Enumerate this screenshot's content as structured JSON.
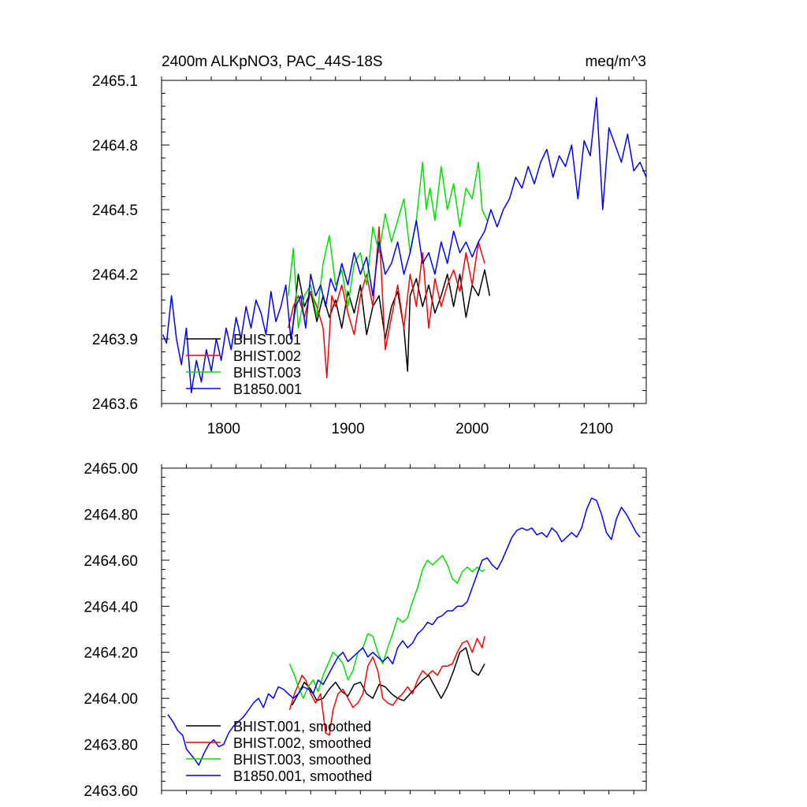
{
  "chart_data": [
    {
      "type": "line",
      "title": "2400m ALKpNO3, PAC_44S-18S",
      "units": "meq/m^3",
      "xlim": [
        1750,
        2140
      ],
      "ylim": [
        2463.6,
        2465.1
      ],
      "x_ticks": [
        1800,
        1900,
        2000,
        2100
      ],
      "x_tick_labels": [
        "1800",
        "1900",
        "2000",
        "2100"
      ],
      "y_ticks": [
        2463.6,
        2463.9,
        2464.2,
        2464.5,
        2464.8,
        2465.1
      ],
      "y_tick_labels": [
        "2463.6",
        "2463.9",
        "2464.2",
        "2464.5",
        "2464.8",
        "2465.1"
      ],
      "legend": "bottom-left",
      "series": [
        {
          "name": "BHIST.001",
          "color": "#000000",
          "x": [
            1855,
            1860,
            1865,
            1870,
            1875,
            1880,
            1885,
            1890,
            1895,
            1900,
            1905,
            1910,
            1915,
            1920,
            1925,
            1930,
            1935,
            1940,
            1945,
            1948,
            1950,
            1955,
            1960,
            1965,
            1970,
            1975,
            1980,
            1985,
            1990,
            1995,
            2000,
            2005,
            2010,
            2014
          ],
          "y": [
            2463.92,
            2464.2,
            2464.05,
            2464.12,
            2463.98,
            2464.1,
            2464.0,
            2464.08,
            2463.95,
            2464.12,
            2464.02,
            2464.15,
            2463.92,
            2464.05,
            2464.1,
            2463.9,
            2464.05,
            2464.12,
            2463.95,
            2463.75,
            2464.1,
            2464.18,
            2464.05,
            2464.15,
            2464.02,
            2464.1,
            2464.2,
            2464.05,
            2464.2,
            2464.0,
            2464.15,
            2464.1,
            2464.22,
            2464.1
          ]
        },
        {
          "name": "BHIST.002",
          "color": "#ff0000",
          "x": [
            1852,
            1856,
            1860,
            1865,
            1870,
            1875,
            1880,
            1883,
            1887,
            1890,
            1895,
            1900,
            1905,
            1910,
            1915,
            1920,
            1925,
            1930,
            1935,
            1940,
            1945,
            1950,
            1955,
            1960,
            1965,
            1970,
            1975,
            1980,
            1985,
            1990,
            1995,
            2000,
            2005,
            2010
          ],
          "y": [
            2463.95,
            2464.05,
            2464.1,
            2464.0,
            2464.12,
            2464.05,
            2463.95,
            2463.72,
            2464.1,
            2464.05,
            2464.15,
            2464.02,
            2463.92,
            2464.1,
            2464.2,
            2464.05,
            2464.42,
            2463.85,
            2464.0,
            2464.15,
            2463.95,
            2464.2,
            2464.05,
            2464.3,
            2463.95,
            2464.18,
            2464.05,
            2464.15,
            2464.22,
            2464.12,
            2464.3,
            2464.15,
            2464.35,
            2464.25
          ]
        },
        {
          "name": "BHIST.003",
          "color": "#00e000",
          "x": [
            1852,
            1856,
            1860,
            1865,
            1870,
            1875,
            1880,
            1885,
            1890,
            1895,
            1900,
            1905,
            1910,
            1915,
            1920,
            1925,
            1930,
            1935,
            1940,
            1945,
            1950,
            1955,
            1960,
            1963,
            1966,
            1970,
            1975,
            1980,
            1985,
            1990,
            1995,
            2000,
            2005,
            2008,
            2012
          ],
          "y": [
            2464.1,
            2464.32,
            2463.95,
            2464.1,
            2464.15,
            2464.0,
            2464.25,
            2464.38,
            2464.15,
            2464.22,
            2464.05,
            2464.25,
            2464.3,
            2464.15,
            2464.42,
            2464.3,
            2464.48,
            2464.35,
            2464.45,
            2464.55,
            2464.3,
            2464.45,
            2464.72,
            2464.5,
            2464.6,
            2464.45,
            2464.7,
            2464.5,
            2464.62,
            2464.42,
            2464.6,
            2464.55,
            2464.72,
            2464.5,
            2464.45
          ]
        },
        {
          "name": "B1850.001",
          "color": "#0000ff",
          "x": [
            1751,
            1754,
            1758,
            1762,
            1766,
            1770,
            1774,
            1778,
            1782,
            1786,
            1790,
            1794,
            1798,
            1802,
            1806,
            1810,
            1814,
            1818,
            1822,
            1826,
            1830,
            1834,
            1838,
            1842,
            1846,
            1850,
            1854,
            1858,
            1862,
            1866,
            1870,
            1874,
            1878,
            1882,
            1886,
            1890,
            1895,
            1900,
            1905,
            1910,
            1915,
            1920,
            1925,
            1930,
            1935,
            1940,
            1945,
            1950,
            1955,
            1960,
            1965,
            1970,
            1975,
            1980,
            1985,
            1990,
            1995,
            2000,
            2005,
            2010,
            2015,
            2020,
            2025,
            2030,
            2035,
            2040,
            2045,
            2050,
            2055,
            2060,
            2065,
            2070,
            2075,
            2080,
            2085,
            2090,
            2095,
            2100,
            2105,
            2110,
            2115,
            2120,
            2125,
            2130,
            2135,
            2140
          ],
          "y": [
            2463.92,
            2463.88,
            2464.1,
            2463.9,
            2463.78,
            2463.95,
            2463.65,
            2463.8,
            2463.7,
            2463.85,
            2463.75,
            2463.9,
            2463.8,
            2463.95,
            2463.85,
            2464.0,
            2463.9,
            2464.05,
            2463.95,
            2464.08,
            2464.02,
            2463.92,
            2464.12,
            2463.98,
            2464.05,
            2464.15,
            2463.9,
            2464.05,
            2464.1,
            2463.95,
            2464.2,
            2464.1,
            2464.15,
            2464.05,
            2464.18,
            2464.12,
            2464.25,
            2464.15,
            2464.3,
            2464.2,
            2464.28,
            2464.1,
            2464.35,
            2464.2,
            2464.25,
            2464.35,
            2464.2,
            2464.3,
            2464.45,
            2464.25,
            2464.3,
            2464.2,
            2464.35,
            2464.25,
            2464.4,
            2464.3,
            2464.35,
            2464.28,
            2464.35,
            2464.4,
            2464.5,
            2464.42,
            2464.5,
            2464.55,
            2464.65,
            2464.6,
            2464.7,
            2464.62,
            2464.72,
            2464.78,
            2464.65,
            2464.75,
            2464.7,
            2464.8,
            2464.55,
            2464.82,
            2464.75,
            2465.02,
            2464.5,
            2464.88,
            2464.8,
            2464.72,
            2464.85,
            2464.68,
            2464.72,
            2464.65
          ]
        }
      ]
    },
    {
      "type": "line",
      "title": "",
      "xlim": [
        1750,
        2140
      ],
      "ylim": [
        2463.6,
        2465.0
      ],
      "x_ticks": [
        1800,
        1900,
        2000,
        2100
      ],
      "x_tick_labels": [
        "",
        "",
        "",
        ""
      ],
      "y_ticks": [
        2463.6,
        2463.8,
        2464.0,
        2464.2,
        2464.4,
        2464.6,
        2464.8,
        2465.0
      ],
      "y_tick_labels": [
        "2463.60",
        "2463.80",
        "2464.00",
        "2464.20",
        "2464.40",
        "2464.60",
        "2464.80",
        "2465.00"
      ],
      "legend": "bottom-left",
      "series": [
        {
          "name": "BHIST.001, smoothed",
          "color": "#000000",
          "x": [
            1855,
            1860,
            1865,
            1870,
            1875,
            1880,
            1885,
            1890,
            1895,
            1900,
            1905,
            1910,
            1915,
            1920,
            1925,
            1930,
            1935,
            1940,
            1945,
            1950,
            1955,
            1960,
            1965,
            1970,
            1975,
            1980,
            1985,
            1990,
            1995,
            2000,
            2005,
            2010
          ],
          "y": [
            2463.97,
            2464.02,
            2464.07,
            2464.04,
            2463.99,
            2464.0,
            2464.04,
            2464.07,
            2464.03,
            2464.01,
            2464.06,
            2464.07,
            2464.02,
            2464.0,
            2464.06,
            2464.05,
            2464.02,
            2464.0,
            2463.99,
            2464.02,
            2464.05,
            2464.08,
            2464.1,
            2464.05,
            2464.0,
            2464.05,
            2464.12,
            2464.2,
            2464.22,
            2464.12,
            2464.1,
            2464.15
          ]
        },
        {
          "name": "BHIST.002, smoothed",
          "color": "#ff0000",
          "x": [
            1853,
            1857,
            1860,
            1863,
            1866,
            1870,
            1874,
            1878,
            1882,
            1885,
            1888,
            1892,
            1896,
            1900,
            1904,
            1908,
            1912,
            1916,
            1920,
            1924,
            1928,
            1932,
            1936,
            1940,
            1944,
            1948,
            1952,
            1956,
            1960,
            1964,
            1968,
            1972,
            1976,
            1980,
            1984,
            1988,
            1992,
            1996,
            2000,
            2004,
            2008,
            2010
          ],
          "y": [
            2463.95,
            2464.02,
            2464.06,
            2464.1,
            2464.08,
            2464.02,
            2463.98,
            2464.02,
            2463.85,
            2463.84,
            2463.95,
            2464.02,
            2464.04,
            2464.0,
            2463.96,
            2463.98,
            2464.02,
            2464.14,
            2464.18,
            2464.12,
            2464.0,
            2463.98,
            2463.97,
            2464.0,
            2464.02,
            2464.05,
            2464.02,
            2464.08,
            2464.12,
            2464.1,
            2464.12,
            2464.1,
            2464.14,
            2464.14,
            2464.15,
            2464.2,
            2464.24,
            2464.25,
            2464.2,
            2464.26,
            2464.22,
            2464.27
          ]
        },
        {
          "name": "BHIST.003, smoothed",
          "color": "#00e000",
          "x": [
            1853,
            1857,
            1860,
            1864,
            1868,
            1872,
            1876,
            1880,
            1884,
            1888,
            1892,
            1896,
            1900,
            1904,
            1908,
            1912,
            1916,
            1920,
            1924,
            1928,
            1932,
            1936,
            1940,
            1944,
            1948,
            1952,
            1956,
            1960,
            1964,
            1968,
            1972,
            1976,
            1980,
            1984,
            1988,
            1992,
            1996,
            2000,
            2004,
            2008,
            2010
          ],
          "y": [
            2464.15,
            2464.1,
            2464.05,
            2464.0,
            2464.05,
            2464.08,
            2464.03,
            2464.1,
            2464.15,
            2464.2,
            2464.18,
            2464.15,
            2464.08,
            2464.12,
            2464.2,
            2464.22,
            2464.28,
            2464.27,
            2464.2,
            2464.15,
            2464.22,
            2464.28,
            2464.35,
            2464.33,
            2464.35,
            2464.42,
            2464.48,
            2464.56,
            2464.6,
            2464.58,
            2464.6,
            2464.62,
            2464.58,
            2464.52,
            2464.5,
            2464.55,
            2464.57,
            2464.55,
            2464.57,
            2464.55,
            2464.56
          ]
        },
        {
          "name": "B1850.001, smoothed",
          "color": "#0000ff",
          "x": [
            1755,
            1759,
            1763,
            1767,
            1770,
            1773,
            1776,
            1780,
            1784,
            1788,
            1792,
            1796,
            1800,
            1804,
            1808,
            1812,
            1816,
            1820,
            1824,
            1828,
            1832,
            1836,
            1840,
            1844,
            1848,
            1852,
            1856,
            1860,
            1864,
            1868,
            1872,
            1876,
            1880,
            1884,
            1888,
            1892,
            1896,
            1900,
            1904,
            1908,
            1912,
            1916,
            1920,
            1924,
            1928,
            1932,
            1936,
            1940,
            1944,
            1948,
            1952,
            1956,
            1960,
            1964,
            1968,
            1972,
            1976,
            1980,
            1984,
            1988,
            1992,
            1996,
            2000,
            2004,
            2008,
            2012,
            2016,
            2020,
            2024,
            2028,
            2032,
            2036,
            2040,
            2044,
            2048,
            2052,
            2056,
            2060,
            2064,
            2068,
            2072,
            2076,
            2080,
            2084,
            2088,
            2092,
            2096,
            2100,
            2104,
            2108,
            2112,
            2116,
            2120,
            2124,
            2128,
            2132,
            2135
          ],
          "y": [
            2463.93,
            2463.9,
            2463.86,
            2463.84,
            2463.78,
            2463.76,
            2463.74,
            2463.71,
            2463.76,
            2463.8,
            2463.82,
            2463.79,
            2463.8,
            2463.85,
            2463.88,
            2463.9,
            2463.92,
            2463.95,
            2463.98,
            2464.0,
            2463.96,
            2464.02,
            2464.0,
            2464.05,
            2464.04,
            2464.02,
            2464.0,
            2464.02,
            2464.05,
            2464.04,
            2464.02,
            2464.08,
            2464.06,
            2464.1,
            2464.14,
            2464.18,
            2464.2,
            2464.16,
            2464.18,
            2464.2,
            2464.22,
            2464.18,
            2464.2,
            2464.18,
            2464.16,
            2464.18,
            2464.15,
            2464.22,
            2464.25,
            2464.22,
            2464.24,
            2464.28,
            2464.3,
            2464.33,
            2464.32,
            2464.35,
            2464.36,
            2464.38,
            2464.38,
            2464.4,
            2464.4,
            2464.42,
            2464.48,
            2464.54,
            2464.6,
            2464.61,
            2464.58,
            2464.56,
            2464.6,
            2464.65,
            2464.7,
            2464.73,
            2464.74,
            2464.73,
            2464.74,
            2464.71,
            2464.72,
            2464.7,
            2464.74,
            2464.72,
            2464.68,
            2464.7,
            2464.72,
            2464.7,
            2464.74,
            2464.82,
            2464.87,
            2464.86,
            2464.8,
            2464.72,
            2464.69,
            2464.78,
            2464.83,
            2464.8,
            2464.76,
            2464.72,
            2464.7
          ]
        }
      ]
    }
  ]
}
